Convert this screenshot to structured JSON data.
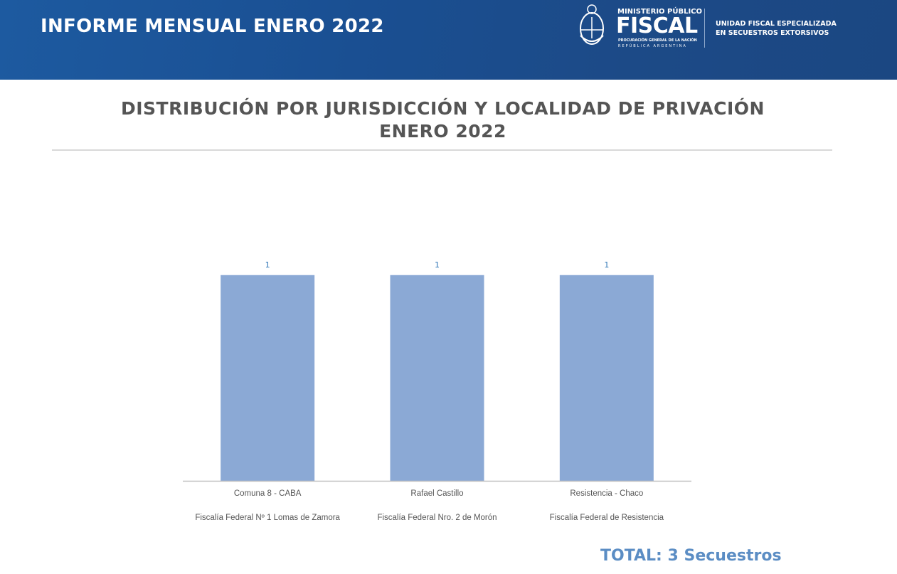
{
  "header": {
    "title": "INFORME MENSUAL ENERO 2022",
    "logo": {
      "ministerio": "MINISTERIO PÚBLICO",
      "fiscal": "FISCAL",
      "procuracion": "PROCURACIÓN GENERAL DE LA NACIÓN",
      "republica": "REPÚBLICA ARGENTINA"
    },
    "unit_line1": "UNIDAD FISCAL ESPECIALIZADA",
    "unit_line2": "EN SECUESTROS EXTORSIVOS"
  },
  "colors": {
    "header": "#1b4f92",
    "bar": "#8ba9d5",
    "label": "#2e75b6",
    "total": "#5b8dc4"
  },
  "chart_data": {
    "type": "bar",
    "title": "DISTRIBUCIÓN POR JURISDICCIÓN Y LOCALIDAD DE PRIVACIÓN",
    "subtitle": "ENERO 2022",
    "categories": [
      "Comuna 8 - CABA",
      "Rafael Castillo",
      "Resistencia - Chaco"
    ],
    "subcategories": [
      "Fiscalía Federal Nº 1 Lomas de Zamora",
      "Fiscalía Federal Nro. 2 de Morón",
      "Fiscalía Federal de Resistencia"
    ],
    "values": [
      1,
      1,
      1
    ],
    "ylim": [
      0,
      1.3
    ],
    "grid": false,
    "xlabel": "",
    "ylabel": ""
  },
  "total": "TOTAL: 3 Secuestros"
}
